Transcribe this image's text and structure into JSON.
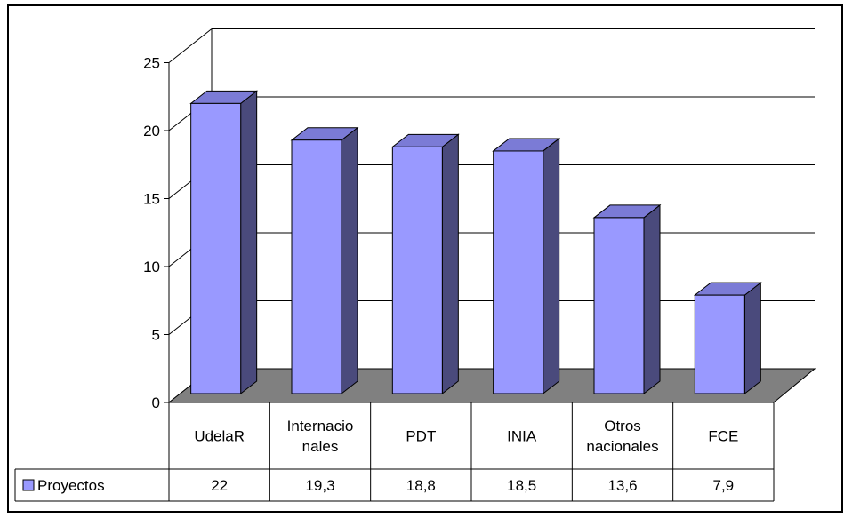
{
  "chart_data": {
    "type": "bar",
    "categories": [
      "UdelaR",
      "Internacionales",
      "PDT",
      "INIA",
      "Otros nacionales",
      "FCE"
    ],
    "category_label_lines": [
      [
        "UdelaR"
      ],
      [
        "Internacio",
        "nales"
      ],
      [
        "PDT"
      ],
      [
        "INIA"
      ],
      [
        "Otros",
        "nacionales"
      ],
      [
        "FCE"
      ]
    ],
    "series": [
      {
        "name": "Proyectos",
        "values": [
          22,
          19.3,
          18.8,
          18.5,
          13.6,
          7.9
        ]
      }
    ],
    "value_labels": [
      "22",
      "19,3",
      "18,8",
      "18,5",
      "13,6",
      "7,9"
    ],
    "y_ticks": [
      "0",
      "5",
      "10",
      "15",
      "20",
      "25"
    ],
    "ylim": [
      0,
      25
    ],
    "grid": true,
    "legend_placement": "table",
    "bar_front_color": "#9999ff",
    "bar_side_color": "#4a4a7c",
    "bar_top_color": "#7b7bd6",
    "floor_color": "#808080"
  }
}
